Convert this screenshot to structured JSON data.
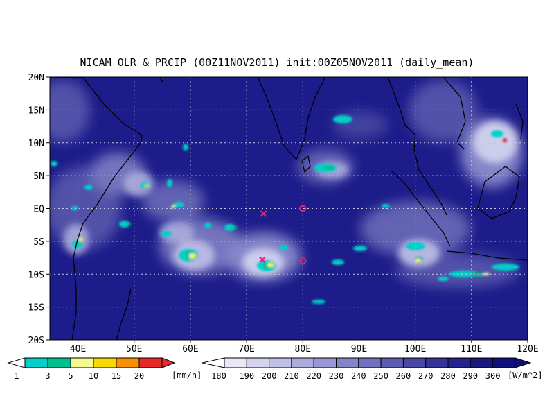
{
  "title": "NICAM OLR & PRCIP (00Z11NOV2011) init:00Z05NOV2011 (daily_mean)",
  "map": {
    "lon_range": [
      35,
      120
    ],
    "lat_range": [
      -20,
      20
    ],
    "lat_labels": [
      {
        "lat": 20,
        "label": "20N"
      },
      {
        "lat": 15,
        "label": "15N"
      },
      {
        "lat": 10,
        "label": "10N"
      },
      {
        "lat": 5,
        "label": "5N"
      },
      {
        "lat": 0,
        "label": "EQ"
      },
      {
        "lat": -5,
        "label": "5S"
      },
      {
        "lat": -10,
        "label": "10S"
      },
      {
        "lat": -15,
        "label": "15S"
      },
      {
        "lat": -20,
        "label": "20S"
      }
    ],
    "lon_labels": [
      {
        "lon": 40,
        "label": "40E"
      },
      {
        "lon": 50,
        "label": "50E"
      },
      {
        "lon": 60,
        "label": "60E"
      },
      {
        "lon": 70,
        "label": "70E"
      },
      {
        "lon": 80,
        "label": "80E"
      },
      {
        "lon": 90,
        "label": "90E"
      },
      {
        "lon": 100,
        "label": "100E"
      },
      {
        "lon": 110,
        "label": "110E"
      },
      {
        "lon": 120,
        "label": "120E"
      }
    ],
    "grid": "dotted",
    "markers": [
      {
        "lon": 73,
        "lat": -0.8,
        "symbol": "x",
        "color": "#e0207a"
      },
      {
        "lon": 80,
        "lat": 0,
        "symbol": "o",
        "color": "#e0207a"
      },
      {
        "lon": 80,
        "lat": -8,
        "symbol": "o",
        "color": "#e0207a"
      },
      {
        "lon": 72.8,
        "lat": -7.8,
        "symbol": "x",
        "color": "#e0207a"
      }
    ]
  },
  "precip_legend": {
    "unit": "[mm/h]",
    "ticks": [
      "1",
      "3",
      "5",
      "10",
      "15",
      "20"
    ],
    "colors": [
      "#00d0c8",
      "#00c090",
      "#f8f890",
      "#f8d800",
      "#f89000",
      "#e82828"
    ]
  },
  "olr_legend": {
    "unit": "[W/m^2]",
    "ticks": [
      "180",
      "190",
      "200",
      "210",
      "220",
      "230",
      "240",
      "250",
      "260",
      "270",
      "280",
      "290",
      "300"
    ],
    "colors": [
      "#e8e8f8",
      "#d4d4f0",
      "#c0c0e8",
      "#acacdc",
      "#9898d4",
      "#8484c8",
      "#7070bc",
      "#5c5cb0",
      "#4848a4",
      "#343498",
      "#24248c",
      "#181880",
      "#10107a"
    ]
  }
}
